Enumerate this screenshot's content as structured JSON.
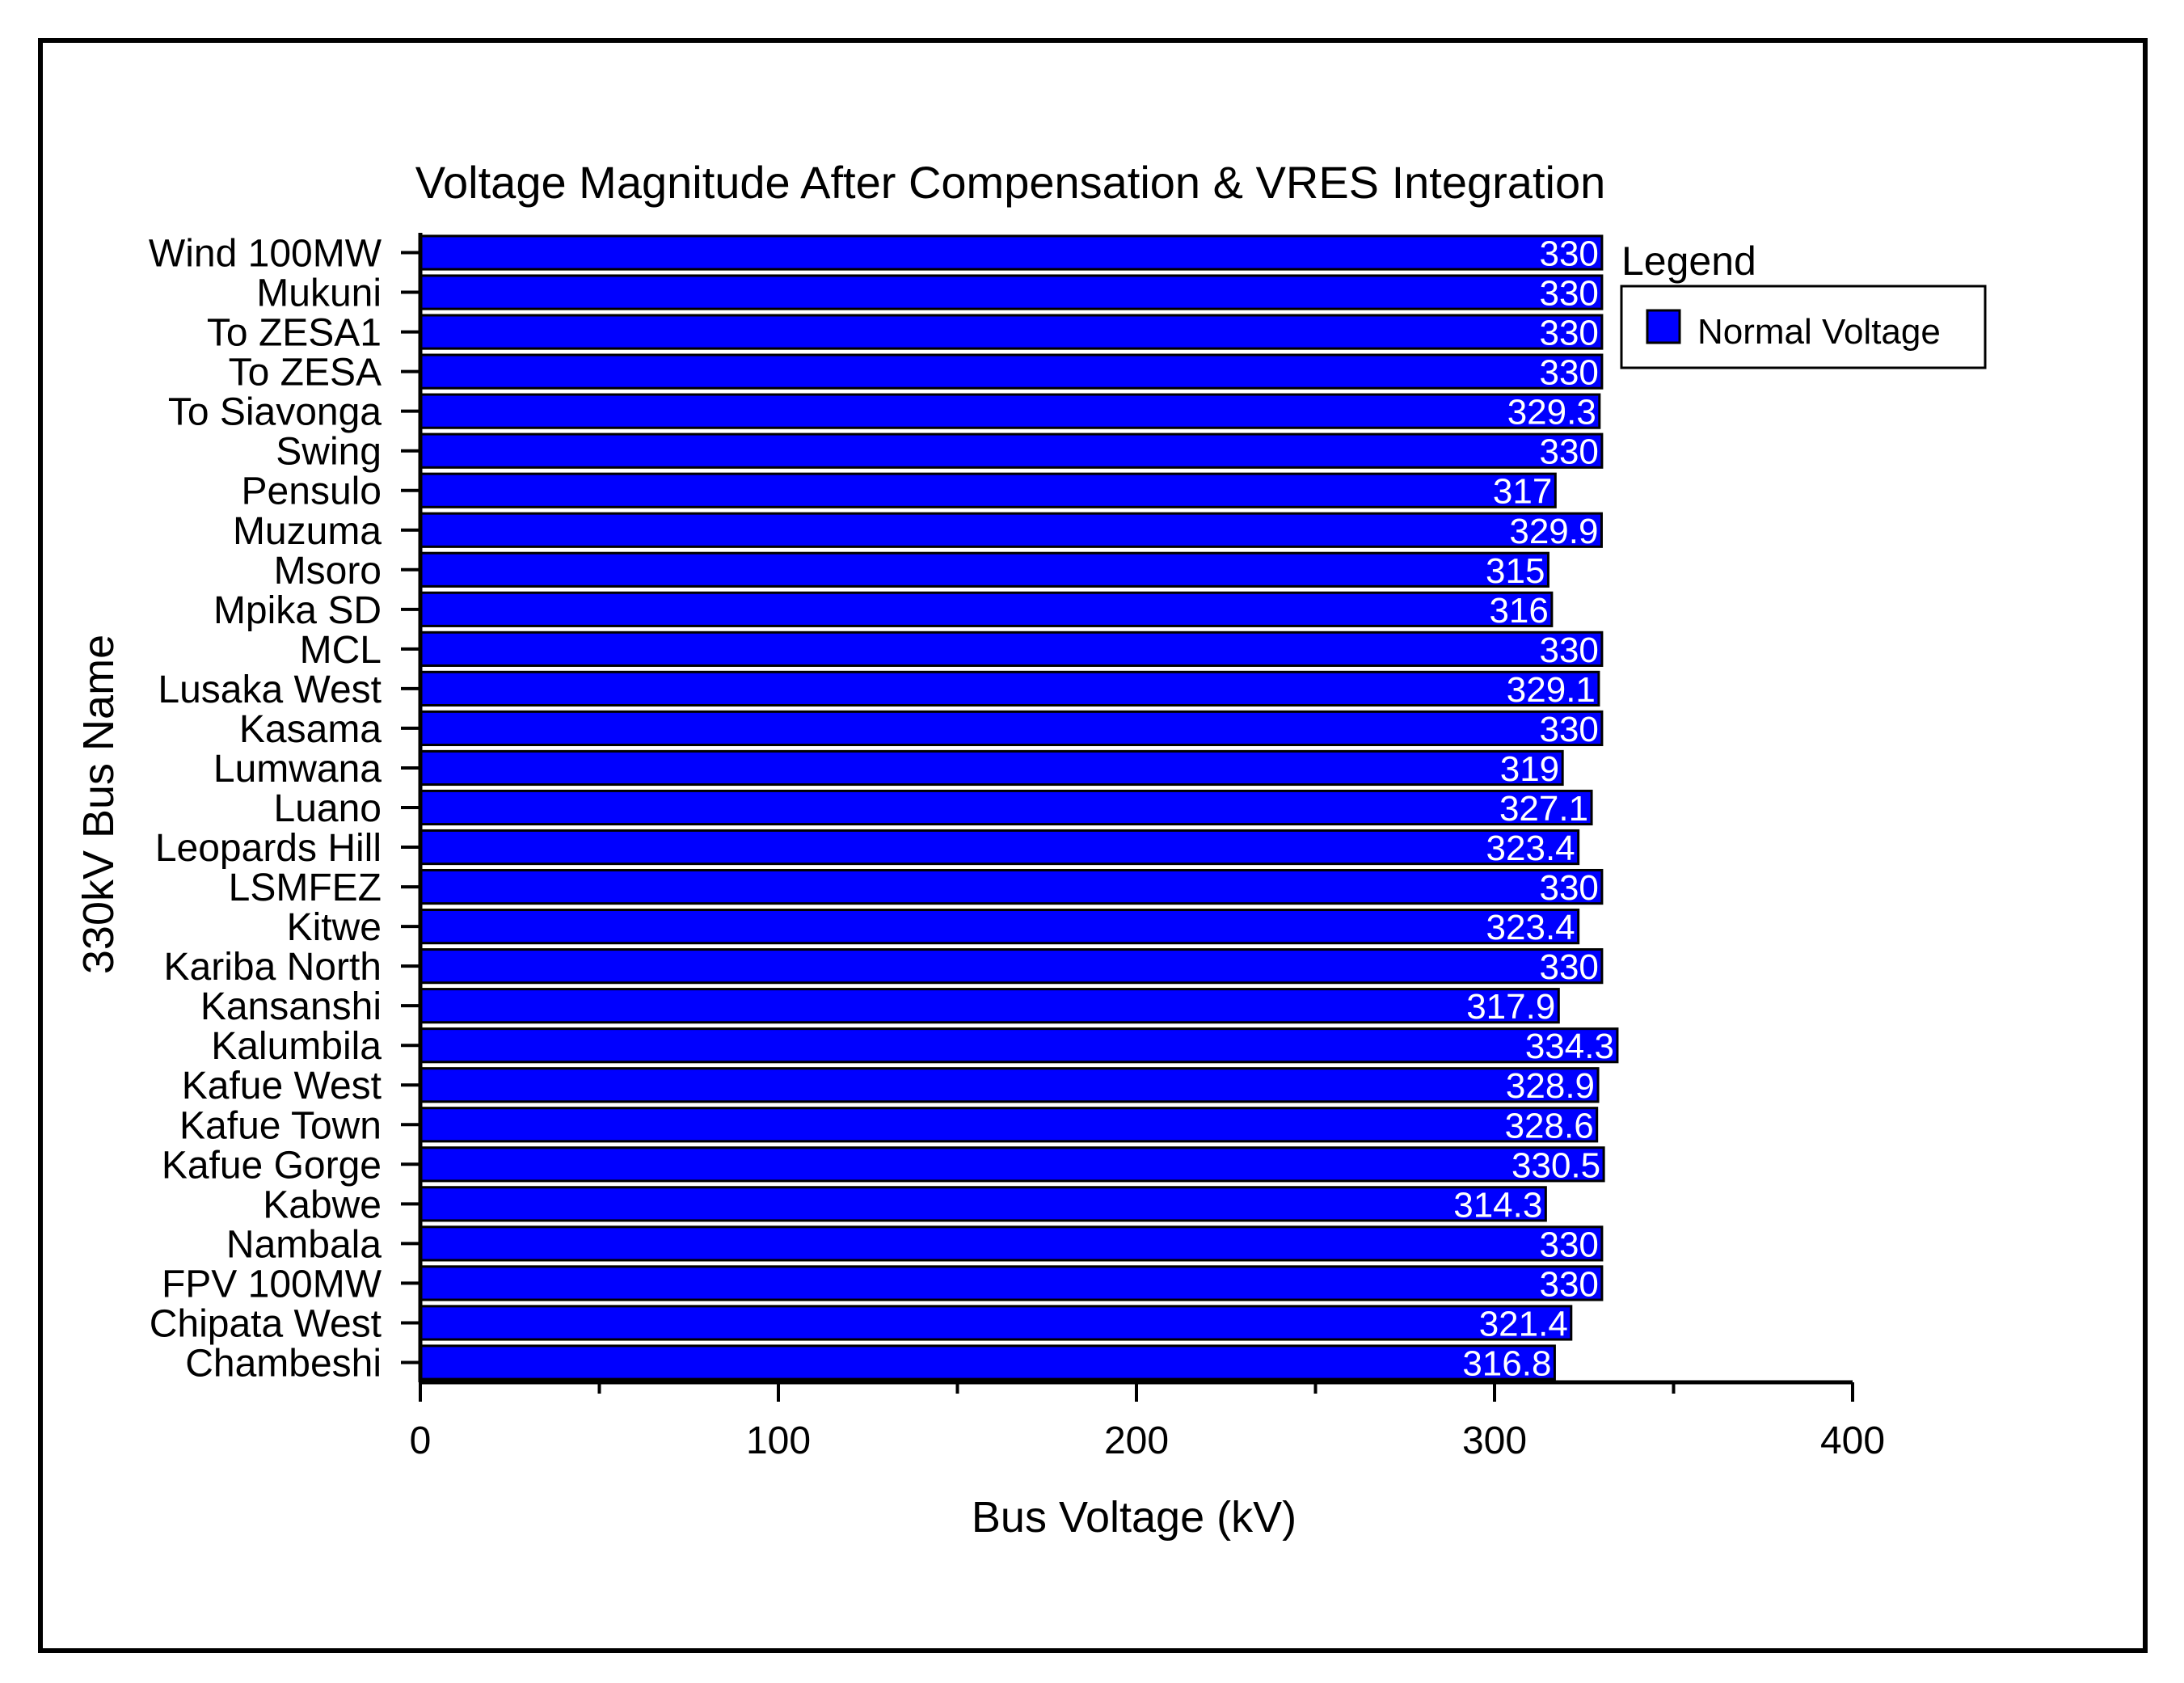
{
  "chart_data": {
    "type": "bar",
    "orientation": "horizontal",
    "title": "Voltage Magnitude After Compensation & VRES Integration",
    "xlabel": "Bus Voltage (kV)",
    "ylabel": "330kV Bus Name",
    "xlim": [
      0,
      400
    ],
    "xticks": [
      "0",
      "100",
      "200",
      "300",
      "400"
    ],
    "grid": false,
    "legend_title": "Legend",
    "legend_position": "top-right",
    "bar_color": "#0000ff",
    "categories": [
      "Wind 100MW",
      "Mukuni",
      "To ZESA1",
      "To ZESA",
      "To Siavonga",
      "Swing",
      "Pensulo",
      "Muzuma",
      "Msoro",
      "Mpika SD",
      "MCL",
      "Lusaka West",
      "Kasama",
      "Lumwana",
      "Luano",
      "Leopards Hill",
      "LSMFEZ",
      "Kitwe",
      "Kariba North",
      "Kansanshi",
      "Kalumbila",
      "Kafue West",
      "Kafue Town",
      "Kafue Gorge",
      "Kabwe",
      "Nambala",
      "FPV 100MW",
      "Chipata West",
      "Chambeshi"
    ],
    "series": [
      {
        "name": "Normal Voltage",
        "values": [
          330,
          330,
          330,
          330,
          329.3,
          330,
          317,
          329.9,
          315,
          316,
          330,
          329.1,
          330,
          319,
          327.1,
          323.4,
          330,
          323.4,
          330,
          317.9,
          334.3,
          328.9,
          328.6,
          330.5,
          314.3,
          330,
          330,
          321.4,
          316.8
        ]
      }
    ]
  }
}
